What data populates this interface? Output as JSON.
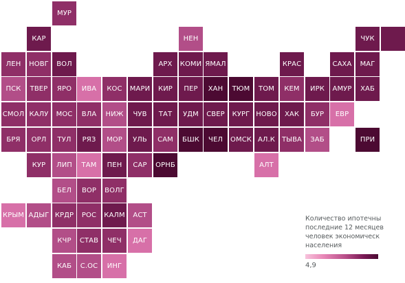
{
  "chart_data": {
    "type": "heatmap",
    "legend_title_lines": [
      "Количество ипотечны",
      "последние 12 месяцев",
      "человек экономическ",
      "населения"
    ],
    "legend_min_label": "4,9",
    "colors": {
      "1": "#4c0a32",
      "2": "#6e1a4d",
      "3": "#8f2f67",
      "4": "#b24e88",
      "5": "#d770a8",
      "6": "#ea92c2"
    },
    "regions": [
      {
        "label": "МУР",
        "row": 0,
        "col": 2,
        "level": 3
      },
      {
        "label": "КАР",
        "row": 1,
        "col": 1,
        "level": 2
      },
      {
        "label": "НЕН",
        "row": 1,
        "col": 7,
        "level": 4
      },
      {
        "label": "ЧУК",
        "row": 1,
        "col": 14,
        "level": 2
      },
      {
        "label": "",
        "row": 1,
        "col": 15,
        "level": 2
      },
      {
        "label": "ЛЕН",
        "row": 2,
        "col": 0,
        "level": 3
      },
      {
        "label": "НОВГ",
        "row": 2,
        "col": 1,
        "level": 3
      },
      {
        "label": "ВОЛ",
        "row": 2,
        "col": 2,
        "level": 2
      },
      {
        "label": "АРХ",
        "row": 2,
        "col": 6,
        "level": 2
      },
      {
        "label": "КОМИ",
        "row": 2,
        "col": 7,
        "level": 2
      },
      {
        "label": "ЯМАЛ",
        "row": 2,
        "col": 8,
        "level": 2
      },
      {
        "label": "КРАС",
        "row": 2,
        "col": 11,
        "level": 2
      },
      {
        "label": "САХА",
        "row": 2,
        "col": 13,
        "level": 2
      },
      {
        "label": "МАГ",
        "row": 2,
        "col": 14,
        "level": 2
      },
      {
        "label": "ПСК",
        "row": 3,
        "col": 0,
        "level": 4
      },
      {
        "label": "ТВЕР",
        "row": 3,
        "col": 1,
        "level": 3
      },
      {
        "label": "ЯРО",
        "row": 3,
        "col": 2,
        "level": 3
      },
      {
        "label": "ИВА",
        "row": 3,
        "col": 3,
        "level": 5
      },
      {
        "label": "КОС",
        "row": 3,
        "col": 4,
        "level": 3
      },
      {
        "label": "МАРИ",
        "row": 3,
        "col": 5,
        "level": 2
      },
      {
        "label": "КИР",
        "row": 3,
        "col": 6,
        "level": 2
      },
      {
        "label": "ПЕР",
        "row": 3,
        "col": 7,
        "level": 2
      },
      {
        "label": "ХАН",
        "row": 3,
        "col": 8,
        "level": 1
      },
      {
        "label": "ТЮМ",
        "row": 3,
        "col": 9,
        "level": 1
      },
      {
        "label": "ТОМ",
        "row": 3,
        "col": 10,
        "level": 2
      },
      {
        "label": "КЕМ",
        "row": 3,
        "col": 11,
        "level": 3
      },
      {
        "label": "ИРК",
        "row": 3,
        "col": 12,
        "level": 2
      },
      {
        "label": "АМУР",
        "row": 3,
        "col": 13,
        "level": 2
      },
      {
        "label": "ХАБ",
        "row": 3,
        "col": 14,
        "level": 2
      },
      {
        "label": "СМОЛ",
        "row": 4,
        "col": 0,
        "level": 3
      },
      {
        "label": "КАЛУ",
        "row": 4,
        "col": 1,
        "level": 3
      },
      {
        "label": "МОС",
        "row": 4,
        "col": 2,
        "level": 3
      },
      {
        "label": "ВЛА",
        "row": 4,
        "col": 3,
        "level": 3
      },
      {
        "label": "НИЖ",
        "row": 4,
        "col": 4,
        "level": 4
      },
      {
        "label": "ЧУВ",
        "row": 4,
        "col": 5,
        "level": 2
      },
      {
        "label": "ТАТ",
        "row": 4,
        "col": 6,
        "level": 2
      },
      {
        "label": "УДМ",
        "row": 4,
        "col": 7,
        "level": 2
      },
      {
        "label": "СВЕР",
        "row": 4,
        "col": 8,
        "level": 2
      },
      {
        "label": "КУРГ",
        "row": 4,
        "col": 9,
        "level": 2
      },
      {
        "label": "НОВО",
        "row": 4,
        "col": 10,
        "level": 2
      },
      {
        "label": "ХАК",
        "row": 4,
        "col": 11,
        "level": 2
      },
      {
        "label": "БУР",
        "row": 4,
        "col": 12,
        "level": 3
      },
      {
        "label": "ЕВР",
        "row": 4,
        "col": 13,
        "level": 5
      },
      {
        "label": "БРЯ",
        "row": 5,
        "col": 0,
        "level": 3
      },
      {
        "label": "ОРЛ",
        "row": 5,
        "col": 1,
        "level": 3
      },
      {
        "label": "ТУЛ",
        "row": 5,
        "col": 2,
        "level": 3
      },
      {
        "label": "РЯЗ",
        "row": 5,
        "col": 3,
        "level": 2
      },
      {
        "label": "МОР",
        "row": 5,
        "col": 4,
        "level": 4
      },
      {
        "label": "УЛЬ",
        "row": 5,
        "col": 5,
        "level": 2
      },
      {
        "label": "САМ",
        "row": 5,
        "col": 6,
        "level": 3
      },
      {
        "label": "БШК",
        "row": 5,
        "col": 7,
        "level": 1
      },
      {
        "label": "ЧЕЛ",
        "row": 5,
        "col": 8,
        "level": 1
      },
      {
        "label": "ОМСК",
        "row": 5,
        "col": 9,
        "level": 2
      },
      {
        "label": "АЛ.К",
        "row": 5,
        "col": 10,
        "level": 2
      },
      {
        "label": "ТЫВА",
        "row": 5,
        "col": 11,
        "level": 3
      },
      {
        "label": "ЗАБ",
        "row": 5,
        "col": 12,
        "level": 4
      },
      {
        "label": "ПРИ",
        "row": 5,
        "col": 14,
        "level": 1
      },
      {
        "label": "КУР",
        "row": 6,
        "col": 1,
        "level": 3
      },
      {
        "label": "ЛИП",
        "row": 6,
        "col": 2,
        "level": 4
      },
      {
        "label": "ТАМ",
        "row": 6,
        "col": 3,
        "level": 5
      },
      {
        "label": "ПЕН",
        "row": 6,
        "col": 4,
        "level": 2
      },
      {
        "label": "САР",
        "row": 6,
        "col": 5,
        "level": 3
      },
      {
        "label": "ОРНБ",
        "row": 6,
        "col": 6,
        "level": 1
      },
      {
        "label": "АЛТ",
        "row": 6,
        "col": 10,
        "level": 5
      },
      {
        "label": "БЕЛ",
        "row": 7,
        "col": 2,
        "level": 4
      },
      {
        "label": "ВОР",
        "row": 7,
        "col": 3,
        "level": 3
      },
      {
        "label": "ВОЛГ",
        "row": 7,
        "col": 4,
        "level": 3
      },
      {
        "label": "КРЫМ",
        "row": 8,
        "col": 0,
        "level": 5
      },
      {
        "label": "АДЫГ",
        "row": 8,
        "col": 1,
        "level": 4
      },
      {
        "label": "КРДР",
        "row": 8,
        "col": 2,
        "level": 3
      },
      {
        "label": "РОС",
        "row": 8,
        "col": 3,
        "level": 3
      },
      {
        "label": "КАЛМ",
        "row": 8,
        "col": 4,
        "level": 2
      },
      {
        "label": "АСТ",
        "row": 8,
        "col": 5,
        "level": 4
      },
      {
        "label": "КЧР",
        "row": 9,
        "col": 2,
        "level": 4
      },
      {
        "label": "СТАВ",
        "row": 9,
        "col": 3,
        "level": 3
      },
      {
        "label": "ЧЕЧ",
        "row": 9,
        "col": 4,
        "level": 3
      },
      {
        "label": "ДАГ",
        "row": 9,
        "col": 5,
        "level": 5
      },
      {
        "label": "КАБ",
        "row": 10,
        "col": 2,
        "level": 4
      },
      {
        "label": "С.ОС",
        "row": 10,
        "col": 3,
        "level": 4
      },
      {
        "label": "ИНГ",
        "row": 10,
        "col": 4,
        "level": 5
      }
    ]
  }
}
